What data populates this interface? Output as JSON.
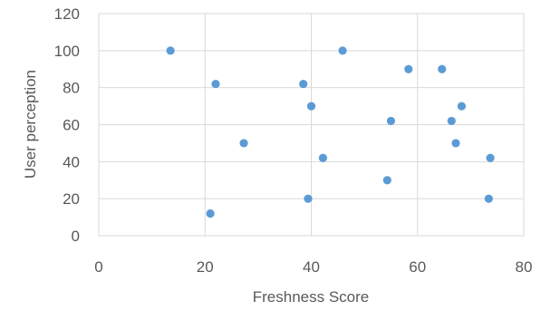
{
  "chart_data": {
    "type": "scatter",
    "title": "",
    "xlabel": "Freshness Score",
    "ylabel": "User perception",
    "xlim": [
      0,
      80
    ],
    "ylim": [
      0,
      120
    ],
    "x_ticks": [
      0,
      20,
      40,
      60,
      80
    ],
    "y_ticks": [
      0,
      20,
      40,
      60,
      80,
      100,
      120
    ],
    "grid": "vertical and horizontal major gridlines",
    "legend": "none",
    "marker_color": "#5B9BD5",
    "grid_color": "#D9D9D9",
    "series": [
      {
        "points": [
          {
            "x": 13.5,
            "y": 100
          },
          {
            "x": 21.0,
            "y": 12
          },
          {
            "x": 22.0,
            "y": 82
          },
          {
            "x": 27.3,
            "y": 50
          },
          {
            "x": 38.5,
            "y": 82
          },
          {
            "x": 39.4,
            "y": 20
          },
          {
            "x": 40.0,
            "y": 70
          },
          {
            "x": 42.2,
            "y": 42
          },
          {
            "x": 45.9,
            "y": 100
          },
          {
            "x": 54.3,
            "y": 30
          },
          {
            "x": 55.0,
            "y": 62
          },
          {
            "x": 58.3,
            "y": 90
          },
          {
            "x": 64.6,
            "y": 90
          },
          {
            "x": 66.4,
            "y": 62
          },
          {
            "x": 67.2,
            "y": 50
          },
          {
            "x": 68.3,
            "y": 70
          },
          {
            "x": 73.4,
            "y": 20
          },
          {
            "x": 73.7,
            "y": 42
          }
        ]
      }
    ]
  }
}
